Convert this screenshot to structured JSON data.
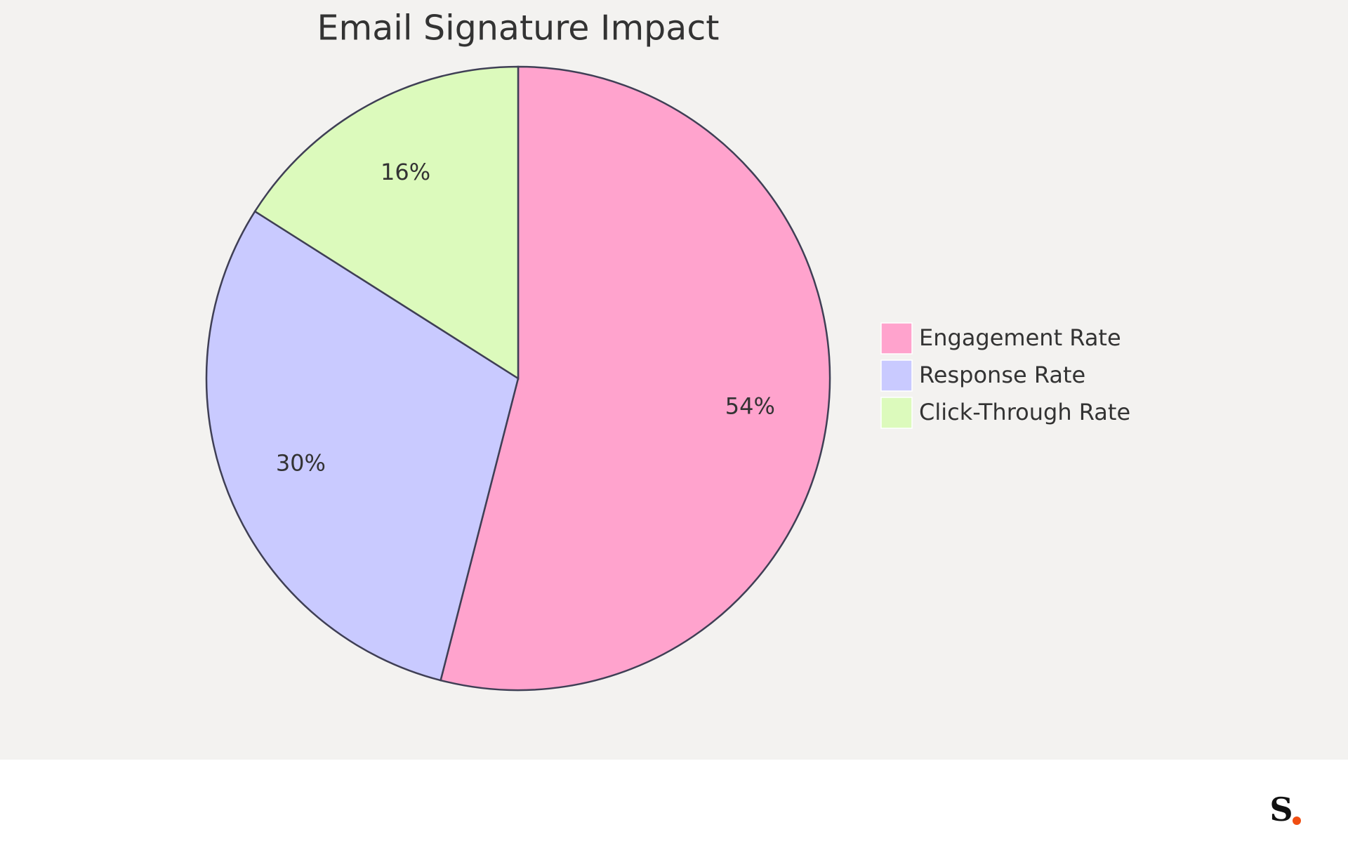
{
  "chart_data": {
    "type": "pie",
    "title": "Email Signature Impact",
    "categories": [
      "Engagement Rate",
      "Response Rate",
      "Click-Through Rate"
    ],
    "values": [
      54,
      30,
      16
    ],
    "value_labels": [
      "54%",
      "30%",
      "16%"
    ],
    "colors": [
      "#ffa3cd",
      "#c9caff",
      "#dcfabc"
    ],
    "legend": "right"
  },
  "footer": {
    "logo": "S"
  }
}
